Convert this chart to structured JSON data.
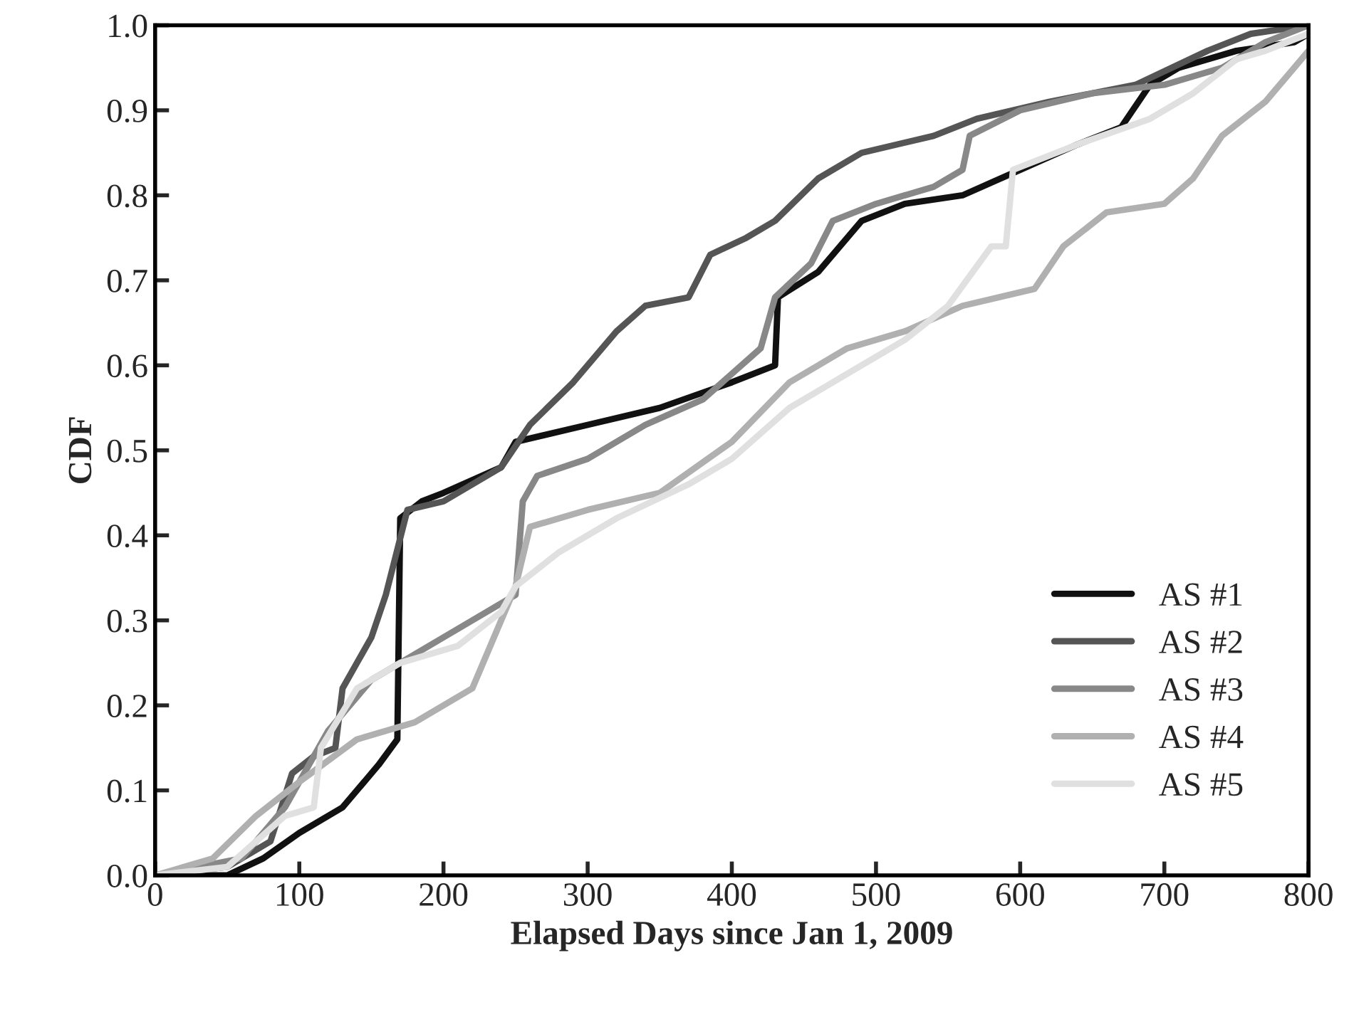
{
  "chart_data": {
    "type": "line",
    "xlabel": "Elapsed Days since Jan 1, 2009",
    "ylabel": "CDF",
    "xlim": [
      0,
      800
    ],
    "ylim": [
      0,
      1
    ],
    "xticks": [
      0,
      100,
      200,
      300,
      400,
      500,
      600,
      700,
      800
    ],
    "yticks": [
      {
        "value": 0,
        "label": "0.0"
      },
      {
        "value": 0.1,
        "label": "0.1"
      },
      {
        "value": 0.2,
        "label": "0.2"
      },
      {
        "value": 0.3,
        "label": "0.3"
      },
      {
        "value": 0.4,
        "label": "0.4"
      },
      {
        "value": 0.5,
        "label": "0.5"
      },
      {
        "value": 0.6,
        "label": "0.6"
      },
      {
        "value": 0.7,
        "label": "0.7"
      },
      {
        "value": 0.8,
        "label": "0.8"
      },
      {
        "value": 0.9,
        "label": "0.9"
      },
      {
        "value": 1,
        "label": "1.0"
      }
    ],
    "grid": false,
    "legend": "bottom right",
    "marker": "none",
    "line_style": "solid",
    "series": [
      {
        "name": "AS #1",
        "color": "#111111",
        "x": [
          0,
          50,
          75,
          100,
          130,
          155,
          168,
          170,
          185,
          200,
          240,
          250,
          300,
          350,
          400,
          430,
          432,
          460,
          490,
          520,
          560,
          600,
          640,
          670,
          690,
          710,
          750,
          790,
          800
        ],
        "values": [
          0,
          0,
          0.02,
          0.05,
          0.08,
          0.13,
          0.16,
          0.42,
          0.44,
          0.45,
          0.48,
          0.51,
          0.53,
          0.55,
          0.58,
          0.6,
          0.68,
          0.71,
          0.77,
          0.79,
          0.8,
          0.83,
          0.86,
          0.88,
          0.93,
          0.95,
          0.97,
          0.98,
          0.99
        ]
      },
      {
        "name": "AS #2",
        "color": "#555555",
        "x": [
          0,
          50,
          80,
          95,
          110,
          125,
          130,
          150,
          160,
          175,
          200,
          240,
          260,
          290,
          320,
          340,
          370,
          385,
          410,
          430,
          460,
          490,
          540,
          570,
          620,
          680,
          730,
          760,
          800
        ],
        "values": [
          0,
          0.01,
          0.04,
          0.12,
          0.14,
          0.15,
          0.22,
          0.28,
          0.33,
          0.43,
          0.44,
          0.48,
          0.53,
          0.58,
          0.64,
          0.67,
          0.68,
          0.73,
          0.75,
          0.77,
          0.82,
          0.85,
          0.87,
          0.89,
          0.91,
          0.93,
          0.97,
          0.99,
          1.0
        ]
      },
      {
        "name": "AS #3",
        "color": "#888888",
        "x": [
          0,
          60,
          90,
          120,
          150,
          190,
          230,
          250,
          255,
          265,
          300,
          340,
          380,
          400,
          420,
          430,
          455,
          470,
          500,
          540,
          560,
          565,
          600,
          650,
          700,
          740,
          770,
          800
        ],
        "values": [
          0,
          0.02,
          0.08,
          0.17,
          0.23,
          0.27,
          0.31,
          0.33,
          0.44,
          0.47,
          0.49,
          0.53,
          0.56,
          0.59,
          0.62,
          0.68,
          0.72,
          0.77,
          0.79,
          0.81,
          0.83,
          0.87,
          0.9,
          0.92,
          0.93,
          0.95,
          0.98,
          1.0
        ]
      },
      {
        "name": "AS #4",
        "color": "#b0b0b0",
        "x": [
          0,
          40,
          70,
          100,
          140,
          180,
          220,
          250,
          260,
          300,
          350,
          400,
          440,
          480,
          520,
          560,
          610,
          630,
          660,
          700,
          720,
          740,
          770,
          790,
          800
        ],
        "values": [
          0,
          0.02,
          0.07,
          0.11,
          0.16,
          0.18,
          0.22,
          0.34,
          0.41,
          0.43,
          0.45,
          0.51,
          0.58,
          0.62,
          0.64,
          0.67,
          0.69,
          0.74,
          0.78,
          0.79,
          0.82,
          0.87,
          0.91,
          0.95,
          0.97
        ]
      },
      {
        "name": "AS #5",
        "color": "#e0e0e0",
        "x": [
          0,
          50,
          90,
          110,
          115,
          140,
          170,
          210,
          240,
          250,
          280,
          320,
          370,
          400,
          440,
          480,
          520,
          550,
          580,
          590,
          595,
          640,
          690,
          720,
          750,
          770,
          800
        ],
        "values": [
          0,
          0.01,
          0.07,
          0.08,
          0.15,
          0.22,
          0.25,
          0.27,
          0.31,
          0.34,
          0.38,
          0.42,
          0.46,
          0.49,
          0.55,
          0.59,
          0.63,
          0.67,
          0.74,
          0.74,
          0.83,
          0.86,
          0.89,
          0.92,
          0.96,
          0.97,
          0.99
        ]
      }
    ]
  }
}
